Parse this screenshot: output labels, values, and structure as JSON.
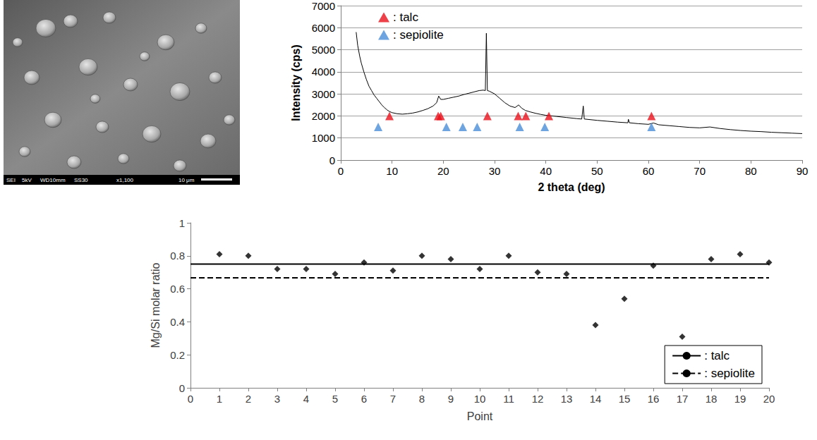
{
  "sem_image": {
    "info_bar": [
      "SEI",
      "5kV",
      "WD10mm",
      "SS30",
      "x1,100",
      "10 μm"
    ]
  },
  "chart_data": [
    {
      "type": "line",
      "x_label": "2 theta (deg)",
      "y_label": "Intensity (cps)",
      "xlim": [
        0,
        90
      ],
      "xticks": [
        0,
        10,
        20,
        30,
        40,
        50,
        60,
        70,
        80,
        90
      ],
      "ylim": [
        0,
        7000
      ],
      "yticks": [
        0,
        1000,
        2000,
        3000,
        4000,
        5000,
        6000,
        7000
      ],
      "grid": true,
      "legend": "top-left",
      "series": [
        {
          "type": "line",
          "color": "#000000",
          "line_style": "solid",
          "x": [
            3,
            3.3,
            3.7,
            4,
            4.5,
            5,
            5.5,
            6,
            6.5,
            7,
            7.5,
            8,
            8.5,
            9,
            9.5,
            10,
            11,
            12,
            13,
            14,
            15,
            16,
            17,
            18,
            18.7,
            19.1,
            19.5,
            20,
            21,
            22,
            23,
            24,
            25,
            26,
            27,
            27.8,
            28.2,
            28.4,
            28.6,
            29,
            30,
            31,
            32,
            33,
            34,
            34.7,
            35.3,
            36,
            37,
            38,
            39,
            40,
            42,
            44,
            46,
            47,
            47.3,
            47.5,
            50,
            52,
            54,
            56,
            56.1,
            56.3,
            58,
            60,
            61,
            62,
            64,
            66,
            68,
            70,
            72,
            74,
            76,
            78,
            80,
            82,
            84,
            86,
            88,
            90
          ],
          "values": [
            5800,
            5200,
            4700,
            4400,
            4000,
            3650,
            3350,
            3150,
            2950,
            2800,
            2650,
            2500,
            2380,
            2280,
            2200,
            2150,
            2100,
            2080,
            2100,
            2130,
            2180,
            2250,
            2330,
            2450,
            2600,
            2900,
            2750,
            2750,
            2800,
            2850,
            2900,
            2970,
            3030,
            3090,
            3150,
            3170,
            3150,
            5750,
            3150,
            3120,
            3000,
            2800,
            2600,
            2450,
            2380,
            2500,
            2350,
            2250,
            2180,
            2120,
            2070,
            2030,
            1980,
            1930,
            1880,
            1860,
            2450,
            1860,
            1800,
            1760,
            1720,
            1690,
            1850,
            1690,
            1650,
            1620,
            1680,
            1600,
            1560,
            1520,
            1480,
            1460,
            1500,
            1430,
            1380,
            1340,
            1310,
            1290,
            1260,
            1240,
            1220,
            1200
          ]
        },
        {
          "name": ": talc",
          "type": "scatter",
          "marker": "triangle",
          "color": "#e8101a",
          "x": [
            9.5,
            19.0,
            19.5,
            28.6,
            34.6,
            36.1,
            40.6,
            60.6
          ],
          "values": [
            2000,
            2000,
            2000,
            2000,
            2000,
            2000,
            2000,
            2000
          ]
        },
        {
          "name": ": sepiolite",
          "type": "scatter",
          "marker": "triangle",
          "color": "#4a8fd8",
          "x": [
            7.3,
            20.6,
            23.8,
            26.6,
            34.9,
            39.8,
            60.6
          ],
          "values": [
            1500,
            1500,
            1500,
            1500,
            1500,
            1500,
            1500
          ]
        }
      ]
    },
    {
      "type": "scatter",
      "x_label": "Point",
      "y_label": "Mg/Si molar ratio",
      "xlim": [
        0,
        20
      ],
      "xticks": [
        0,
        1,
        2,
        3,
        4,
        5,
        6,
        7,
        8,
        9,
        10,
        11,
        12,
        13,
        14,
        15,
        16,
        17,
        18,
        19,
        20
      ],
      "ylim": [
        0,
        1
      ],
      "yticks": [
        0,
        0.2,
        0.4,
        0.6,
        0.8,
        1
      ],
      "grid": false,
      "legend": "bottom-right",
      "series": [
        {
          "type": "scatter",
          "marker": "diamond",
          "color": "#000000",
          "x": [
            1,
            2,
            3,
            4,
            5,
            6,
            7,
            8,
            9,
            10,
            11,
            12,
            13,
            14,
            15,
            16,
            17,
            18,
            19,
            20
          ],
          "values": [
            0.81,
            0.8,
            0.72,
            0.72,
            0.69,
            0.76,
            0.71,
            0.8,
            0.78,
            0.72,
            0.8,
            0.7,
            0.69,
            0.38,
            0.54,
            0.74,
            0.31,
            0.78,
            0.81,
            0.76
          ]
        },
        {
          "name": ": talc",
          "type": "line",
          "line_style": "solid",
          "color": "#000000",
          "x": [
            0,
            20
          ],
          "values": [
            0.75,
            0.75
          ]
        },
        {
          "name": ": sepiolite",
          "type": "line",
          "line_style": "dashed",
          "color": "#000000",
          "x": [
            0,
            20
          ],
          "values": [
            0.667,
            0.667
          ]
        }
      ]
    }
  ]
}
